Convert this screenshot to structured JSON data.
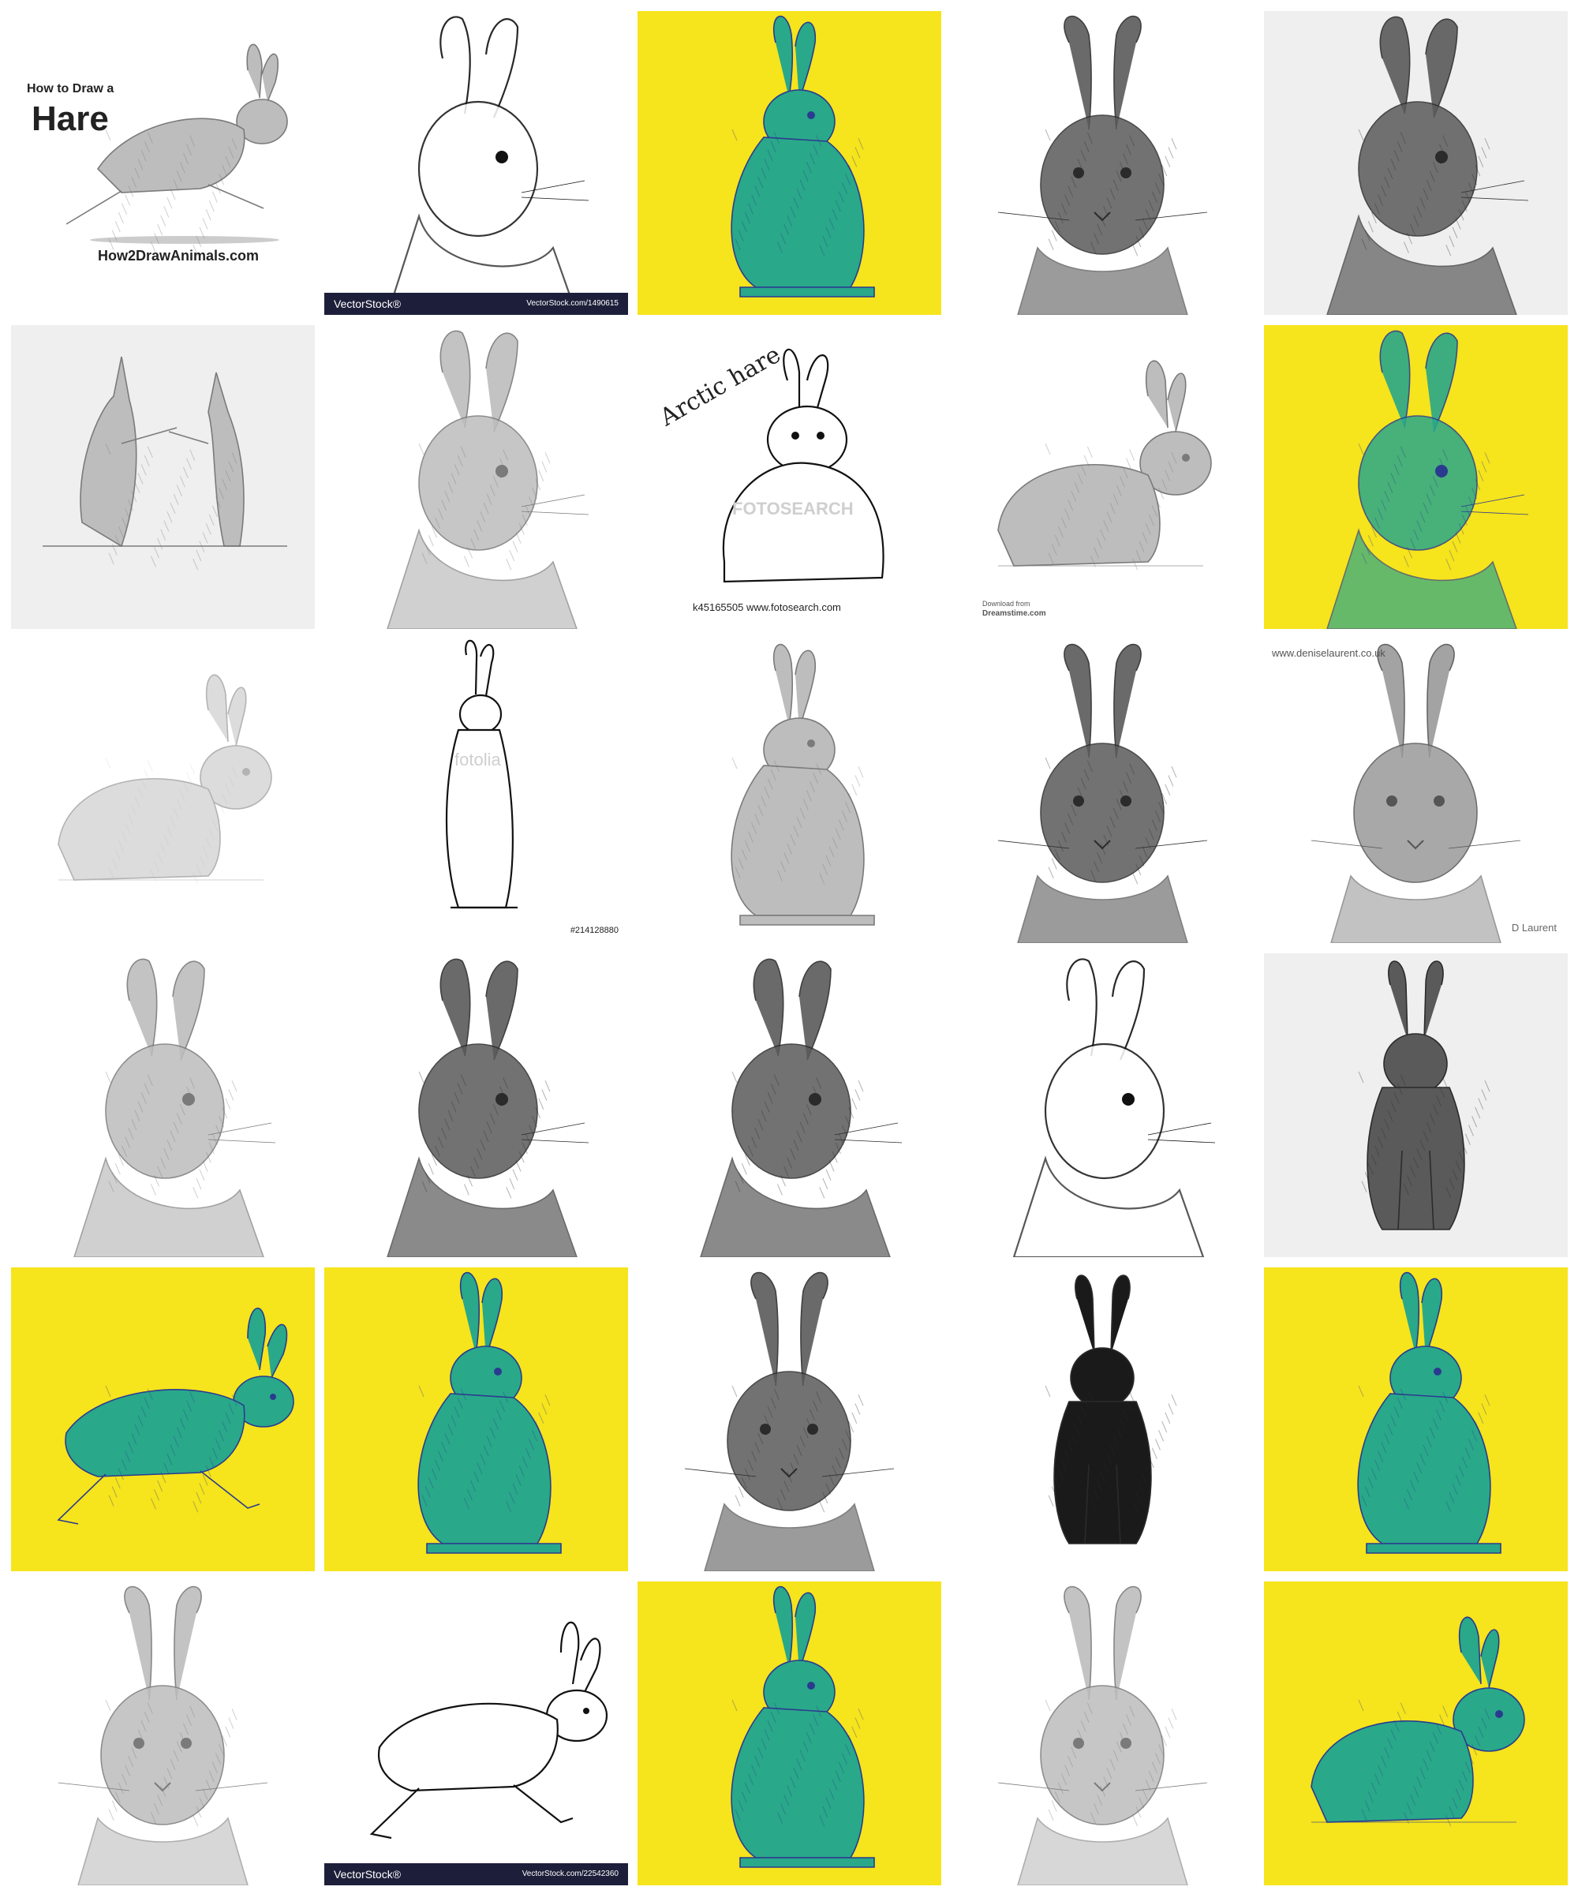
{
  "tiles": [
    {
      "id": "how2draw-hare",
      "style": "pencil",
      "bg": "white",
      "pose": "leaping",
      "texts": {
        "caption_small": "How to Draw a",
        "caption_big": "Hare",
        "site": "How2DrawAnimals.com"
      }
    },
    {
      "id": "lineart-head",
      "style": "ink",
      "bg": "white",
      "pose": "head",
      "texts": {
        "vs_left": "VectorStock®",
        "vs_right": "VectorStock.com/1490615"
      }
    },
    {
      "id": "yellow-sitting",
      "style": "duotone",
      "bg": "yellow",
      "pose": "sitting"
    },
    {
      "id": "charcoal-front-1",
      "style": "charcoal",
      "bg": "white",
      "pose": "head-front"
    },
    {
      "id": "charcoal-portrait-1",
      "style": "charcoal",
      "bg": "grey",
      "pose": "head-side"
    },
    {
      "id": "boxing-hares",
      "style": "pencil",
      "bg": "grey",
      "pose": "boxing"
    },
    {
      "id": "pencil-portrait-1",
      "style": "pencil",
      "bg": "white",
      "pose": "head-side"
    },
    {
      "id": "arctic-hare",
      "style": "ink",
      "bg": "white",
      "pose": "arctic",
      "texts": {
        "title": "Arctic hare",
        "code": "k45165505  www.fotosearch.com",
        "watermark": "FOTOSEARCH"
      }
    },
    {
      "id": "dreamstime-rabbit",
      "style": "pencil",
      "bg": "white",
      "pose": "crouching",
      "texts": {
        "download": "Download from",
        "site": "Dreamstime.com"
      }
    },
    {
      "id": "yellow-portrait",
      "style": "duotone",
      "bg": "yellow",
      "pose": "head-side"
    },
    {
      "id": "faint-crouching",
      "style": "pencil-light",
      "bg": "white",
      "pose": "crouching"
    },
    {
      "id": "standing-ink",
      "style": "ink",
      "bg": "white",
      "pose": "standing",
      "texts": {
        "id_code": "#214128880",
        "watermark": "fotolia"
      }
    },
    {
      "id": "pencil-sitting",
      "style": "pencil",
      "bg": "white",
      "pose": "sitting"
    },
    {
      "id": "charcoal-front-2",
      "style": "charcoal",
      "bg": "white",
      "pose": "head-front"
    },
    {
      "id": "denise-laurent",
      "style": "watercolor",
      "bg": "white",
      "pose": "head-front",
      "texts": {
        "site": "www.deniselaurent.co.uk",
        "sig": "D Laurent"
      }
    },
    {
      "id": "pencil-portrait-2",
      "style": "pencil",
      "bg": "white",
      "pose": "head-side"
    },
    {
      "id": "charcoal-portrait-2",
      "style": "charcoal",
      "bg": "white",
      "pose": "head-side"
    },
    {
      "id": "charcoal-portrait-3",
      "style": "charcoal",
      "bg": "white",
      "pose": "head-side"
    },
    {
      "id": "hatched-head",
      "style": "ink",
      "bg": "white",
      "pose": "head-side"
    },
    {
      "id": "ink-sitting-front",
      "style": "charcoal",
      "bg": "grey",
      "pose": "sitting-front"
    },
    {
      "id": "yellow-running",
      "style": "duotone",
      "bg": "yellow",
      "pose": "running"
    },
    {
      "id": "yellow-sitting-back",
      "style": "duotone",
      "bg": "yellow",
      "pose": "sitting"
    },
    {
      "id": "pastel-portrait",
      "style": "charcoal",
      "bg": "white",
      "pose": "head-front"
    },
    {
      "id": "black-sitting",
      "style": "ink-dark",
      "bg": "white",
      "pose": "sitting-front"
    },
    {
      "id": "yellow-sitting-2",
      "style": "duotone",
      "bg": "yellow",
      "pose": "sitting"
    },
    {
      "id": "pencil-front-3",
      "style": "pencil",
      "bg": "white",
      "pose": "head-front"
    },
    {
      "id": "vectorstock-running",
      "style": "ink",
      "bg": "white",
      "pose": "running",
      "texts": {
        "vs_left": "VectorStock®",
        "vs_right": "VectorStock.com/22542360"
      }
    },
    {
      "id": "yellow-grass-sitting",
      "style": "duotone",
      "bg": "yellow",
      "pose": "sitting"
    },
    {
      "id": "pencil-front-4",
      "style": "pencil",
      "bg": "white",
      "pose": "head-front"
    },
    {
      "id": "yellow-crouching",
      "style": "duotone",
      "bg": "yellow",
      "pose": "crouching"
    }
  ],
  "colors": {
    "duotone_fill": "#2aa88a",
    "duotone_dark": "#2a3b8f",
    "yellow": "#f6e41c",
    "pencil": "#7a7a7a",
    "charcoal": "#2b2b2b",
    "ink": "#111111"
  }
}
